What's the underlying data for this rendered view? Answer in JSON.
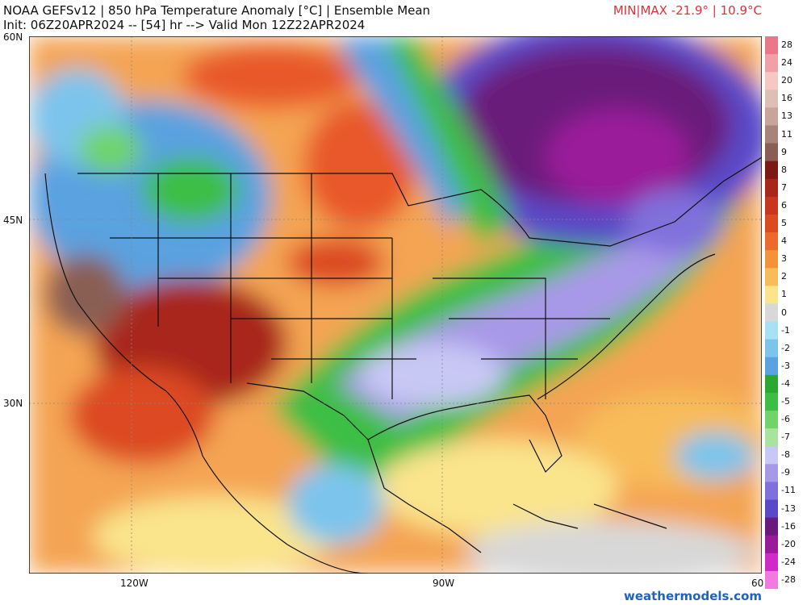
{
  "header": {
    "title": "NOAA GEFSv12 | 850 hPa Temperature Anomaly [°C] | Ensemble Mean",
    "init_line": "Init: 06Z20APR2024 -- [54] hr --> Valid Mon 12Z22APR2024",
    "minmax": "MIN|MAX -21.9° | 10.9°C"
  },
  "map": {
    "lat_labels": [
      "60N",
      "45N",
      "30N"
    ],
    "lon_labels": [
      "120W",
      "90W",
      "60"
    ]
  },
  "colorbar": {
    "ticks": [
      "28",
      "24",
      "20",
      "16",
      "13",
      "11",
      "9",
      "8",
      "7",
      "6",
      "5",
      "4",
      "3",
      "2",
      "1",
      "0",
      "-1",
      "-2",
      "-3",
      "-4",
      "-5",
      "-6",
      "-7",
      "-8",
      "-9",
      "-11",
      "-13",
      "-16",
      "-20",
      "-24",
      "-28"
    ],
    "colors": [
      "#e8788a",
      "#f0a0a8",
      "#f6c8c4",
      "#dcc0b8",
      "#c8a49a",
      "#a88478",
      "#8a5e52",
      "#7a1a12",
      "#a8261a",
      "#c8361e",
      "#dc4a22",
      "#ec6a2a",
      "#f4923a",
      "#f8bc5a",
      "#fae48c",
      "#d8d8d8",
      "#a8e0f4",
      "#7cc4ec",
      "#5aa2e0",
      "#2aa832",
      "#3cbe44",
      "#70d46a",
      "#a8e4a0",
      "#c8c8f4",
      "#a898e8",
      "#8070dc",
      "#5a48c8",
      "#6a1a7a",
      "#9a1a9a",
      "#d02ac8",
      "#f07ae0"
    ]
  },
  "credit": "weathermodels.com"
}
